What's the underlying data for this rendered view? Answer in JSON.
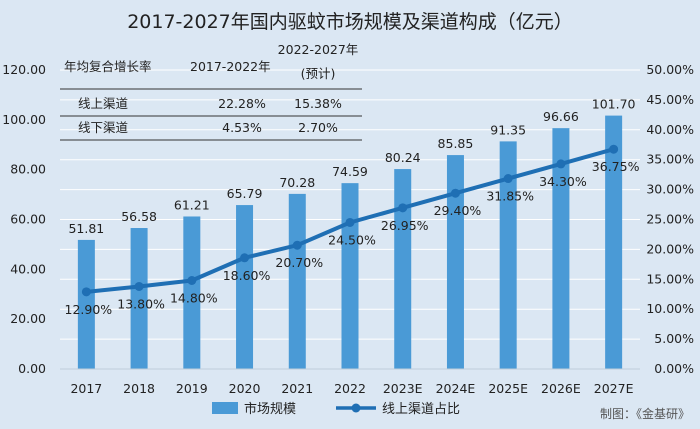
{
  "chart_data": {
    "type": "bar",
    "title": "2017-2027年国内驱蚊市场规模及渠道构成（亿元）",
    "categories": [
      "2017",
      "2018",
      "2019",
      "2020",
      "2021",
      "2022",
      "2023E",
      "2024E",
      "2025E",
      "2026E",
      "2027E"
    ],
    "series": [
      {
        "name": "市场规模",
        "type": "bar",
        "axis": "left",
        "color": "#4a9ad6",
        "values": [
          51.81,
          56.58,
          61.21,
          65.79,
          70.28,
          74.59,
          80.24,
          85.85,
          91.35,
          96.66,
          101.7
        ],
        "labels": [
          "51.81",
          "56.58",
          "61.21",
          "65.79",
          "70.28",
          "74.59",
          "80.24",
          "85.85",
          "91.35",
          "96.66",
          "101.70"
        ]
      },
      {
        "name": "线上渠道占比",
        "type": "line",
        "axis": "right",
        "color": "#1f6fb4",
        "values": [
          12.9,
          13.8,
          14.8,
          18.6,
          20.7,
          24.5,
          26.95,
          29.4,
          31.85,
          34.3,
          36.75
        ],
        "labels": [
          "12.90%",
          "13.80%",
          "14.80%",
          "18.60%",
          "20.70%",
          "24.50%",
          "26.95%",
          "29.40%",
          "31.85%",
          "34.30%",
          "36.75%"
        ]
      }
    ],
    "y_left": {
      "min": 0,
      "max": 120,
      "step": 20,
      "ticks": [
        "0.00",
        "20.00",
        "40.00",
        "60.00",
        "80.00",
        "100.00",
        "120.00"
      ]
    },
    "y_right": {
      "min": 0,
      "max": 50,
      "step": 5,
      "ticks": [
        "0.00%",
        "5.00%",
        "10.00%",
        "15.00%",
        "20.00%",
        "25.00%",
        "30.00%",
        "35.00%",
        "40.00%",
        "45.00%",
        "50.00%"
      ]
    },
    "grid": true,
    "legend_position": "bottom",
    "table": {
      "header": [
        "年均复合增长率",
        "2017-2022年",
        "2022-2027年",
        "(预计)"
      ],
      "rows": [
        [
          "线上渠道",
          "22.28%",
          "15.38%"
        ],
        [
          "线下渠道",
          "4.53%",
          "2.70%"
        ]
      ]
    }
  },
  "source": "制图：《金基研》"
}
